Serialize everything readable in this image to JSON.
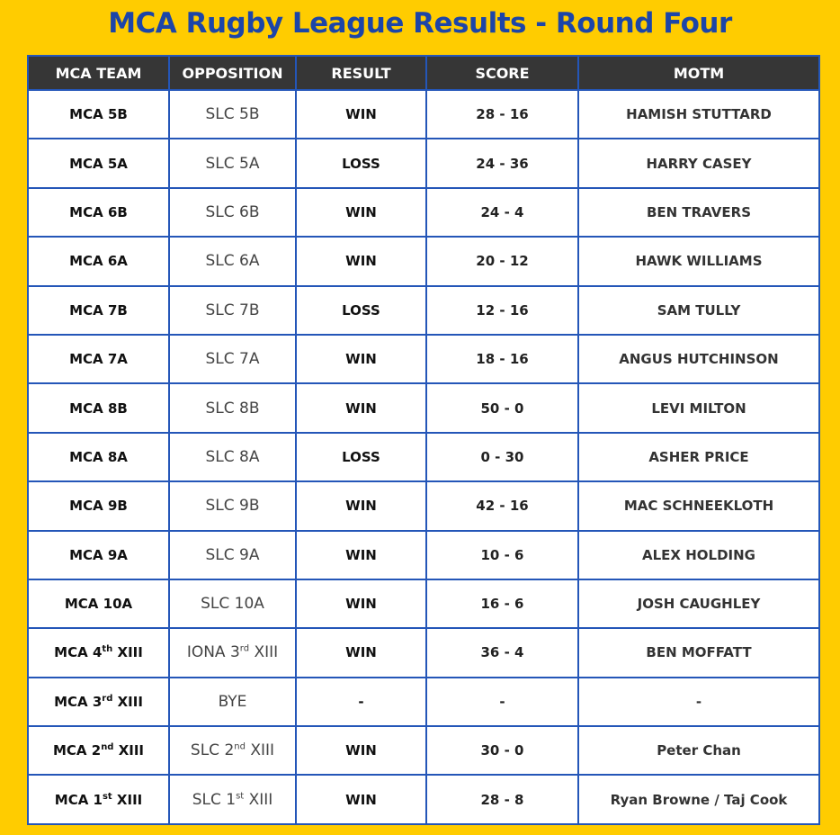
{
  "header": {
    "title": "MCA Rugby League Results - Round Four"
  },
  "table": {
    "columns": [
      "MCA TEAM",
      "OPPOSITION",
      "RESULT",
      "SCORE",
      "MOTM"
    ],
    "rows": [
      [
        "MCA 5B",
        "SLC 5B",
        "WIN",
        "28 - 16",
        "HAMISH STUTTARD"
      ],
      [
        "MCA 5A",
        "SLC 5A",
        "LOSS",
        "24 - 36",
        "HARRY CASEY"
      ],
      [
        "MCA 6B",
        "SLC 6B",
        "WIN",
        "24 - 4",
        "BEN TRAVERS"
      ],
      [
        "MCA 6A",
        "SLC 6A",
        "WIN",
        "20 - 12",
        "HAWK WILLIAMS"
      ],
      [
        "MCA 7B",
        "SLC 7B",
        "LOSS",
        "12 - 16",
        "SAM TULLY"
      ],
      [
        "MCA 7A",
        "SLC 7A",
        "WIN",
        "18 - 16",
        "ANGUS HUTCHINSON"
      ],
      [
        "MCA 8B",
        "SLC 8B",
        "WIN",
        "50 - 0",
        "LEVI MILTON"
      ],
      [
        "MCA 8A",
        "SLC 8A",
        "LOSS",
        "0 - 30",
        "ASHER PRICE"
      ],
      [
        "MCA 9B",
        "SLC 9B",
        "WIN",
        "42 - 16",
        "MAC SCHNEEKLOTH"
      ],
      [
        "MCA 9A",
        "SLC 9A",
        "WIN",
        "10 - 6",
        "ALEX HOLDING"
      ],
      [
        "MCA 10A",
        "SLC 10A",
        "WIN",
        "16 - 6",
        "JOSH CAUGHLEY"
      ],
      [
        [
          "MCA 4",
          "th",
          " XIII"
        ],
        [
          "IONA 3",
          "rd",
          " XIII"
        ],
        "WIN",
        "36 - 4",
        "BEN MOFFATT"
      ],
      [
        [
          "MCA 3",
          "rd",
          " XIII"
        ],
        "BYE",
        "-",
        "-",
        "-"
      ],
      [
        [
          "MCA 2",
          "nd",
          " XIII"
        ],
        [
          "SLC 2",
          "nd",
          " XIII"
        ],
        "WIN",
        "30 - 0",
        "Peter Chan"
      ],
      [
        [
          "MCA 1",
          "st",
          " XIII"
        ],
        [
          "SLC 1",
          "st",
          " XIII"
        ],
        "WIN",
        "28 - 8",
        "Ryan Browne / Taj Cook"
      ]
    ]
  }
}
